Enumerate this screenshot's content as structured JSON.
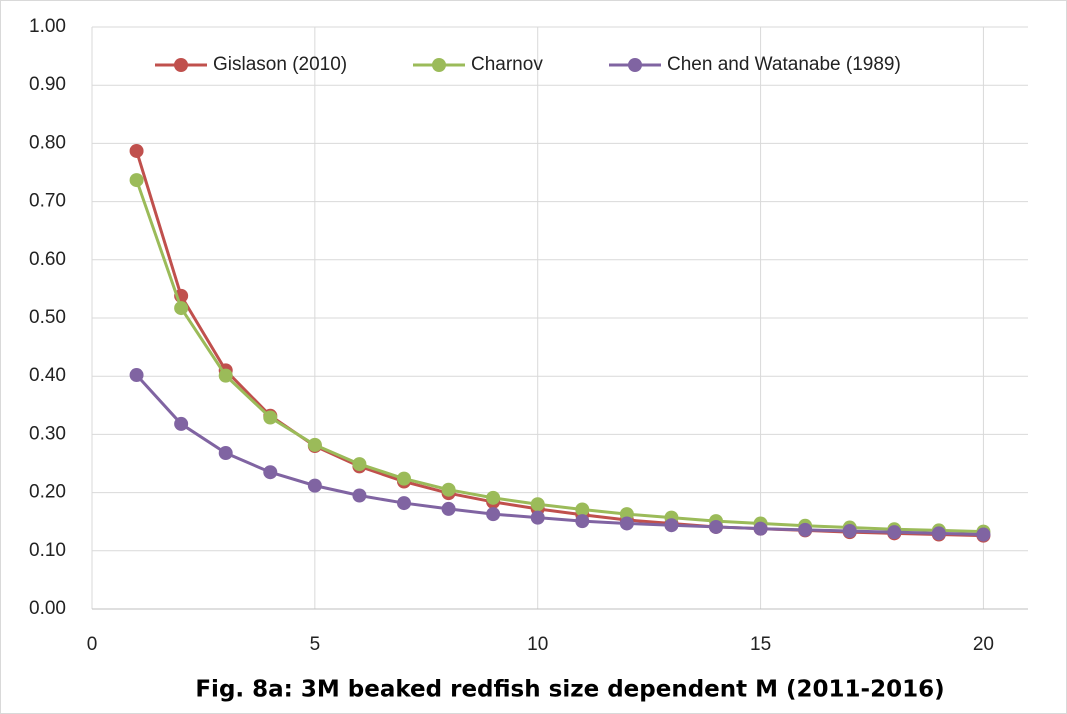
{
  "chart_data": {
    "type": "line",
    "title": "Fig. 8a: 3M beaked redfish size dependent M (2011-2016)",
    "x": [
      1,
      2,
      3,
      4,
      5,
      6,
      7,
      8,
      9,
      10,
      11,
      12,
      13,
      14,
      15,
      16,
      17,
      18,
      19,
      20
    ],
    "series": [
      {
        "name": "Gislason (2010)",
        "color": "#c0504d",
        "values": [
          0.787,
          0.538,
          0.41,
          0.332,
          0.28,
          0.245,
          0.219,
          0.199,
          0.184,
          0.172,
          0.162,
          0.153,
          0.147,
          0.141,
          0.138,
          0.135,
          0.132,
          0.13,
          0.128,
          0.126
        ]
      },
      {
        "name": "Charnov",
        "color": "#9bbb59",
        "values": [
          0.737,
          0.517,
          0.401,
          0.329,
          0.282,
          0.249,
          0.224,
          0.205,
          0.191,
          0.18,
          0.171,
          0.163,
          0.157,
          0.151,
          0.147,
          0.143,
          0.14,
          0.137,
          0.135,
          0.133
        ]
      },
      {
        "name": "Chen and Watanabe (1989)",
        "color": "#8064a2",
        "values": [
          0.402,
          0.318,
          0.268,
          0.235,
          0.212,
          0.195,
          0.182,
          0.172,
          0.163,
          0.157,
          0.151,
          0.147,
          0.144,
          0.141,
          0.138,
          0.136,
          0.134,
          0.132,
          0.13,
          0.128
        ]
      }
    ],
    "xlim": [
      0,
      21
    ],
    "xticks": [
      0,
      5,
      10,
      15,
      20
    ],
    "ylim": [
      0,
      1
    ],
    "yticks": [
      {
        "value": 0,
        "label": "0.00"
      },
      {
        "value": 0.1,
        "label": "0.10"
      },
      {
        "value": 0.2,
        "label": "0.20"
      },
      {
        "value": 0.3,
        "label": "0.30"
      },
      {
        "value": 0.4,
        "label": "0.40"
      },
      {
        "value": 0.5,
        "label": "0.50"
      },
      {
        "value": 0.6,
        "label": "0.60"
      },
      {
        "value": 0.7,
        "label": "0.70"
      },
      {
        "value": 0.8,
        "label": "0.80"
      },
      {
        "value": 0.9,
        "label": "0.90"
      },
      {
        "value": 1,
        "label": "1.00"
      }
    ],
    "grid": true,
    "legend": "top"
  }
}
